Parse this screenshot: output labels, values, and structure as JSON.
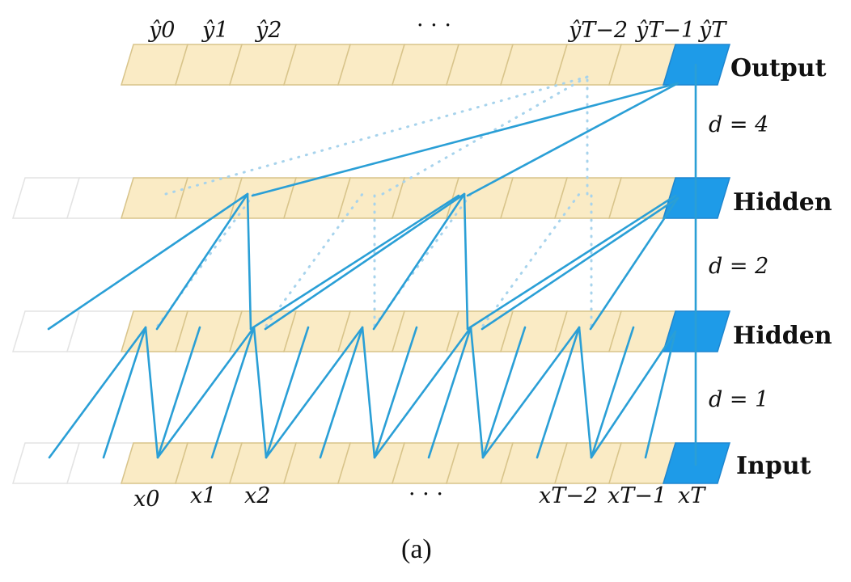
{
  "layers": {
    "output": "Output",
    "hidden2": "Hidden",
    "hidden1": "Hidden",
    "input": "Input"
  },
  "dilations": {
    "d4": "d = 4",
    "d2": "d = 2",
    "d1": "d = 1"
  },
  "outputs": {
    "y0": "ŷ0",
    "y1": "ŷ1",
    "y2": "ŷ2",
    "dots": "· · ·",
    "yTm2": "ŷT−2",
    "yTm1": "ŷT−1",
    "yT": "ŷT"
  },
  "inputs": {
    "x0": "x0",
    "x1": "x1",
    "x2": "x2",
    "dots": "· · ·",
    "xTm2": "xT−2",
    "xTm1": "xT−1",
    "xT": "xT"
  },
  "caption": "(a)",
  "colors": {
    "cell": "#faebc5",
    "current": "#1e9be8",
    "edge": "#2a9fd6"
  }
}
